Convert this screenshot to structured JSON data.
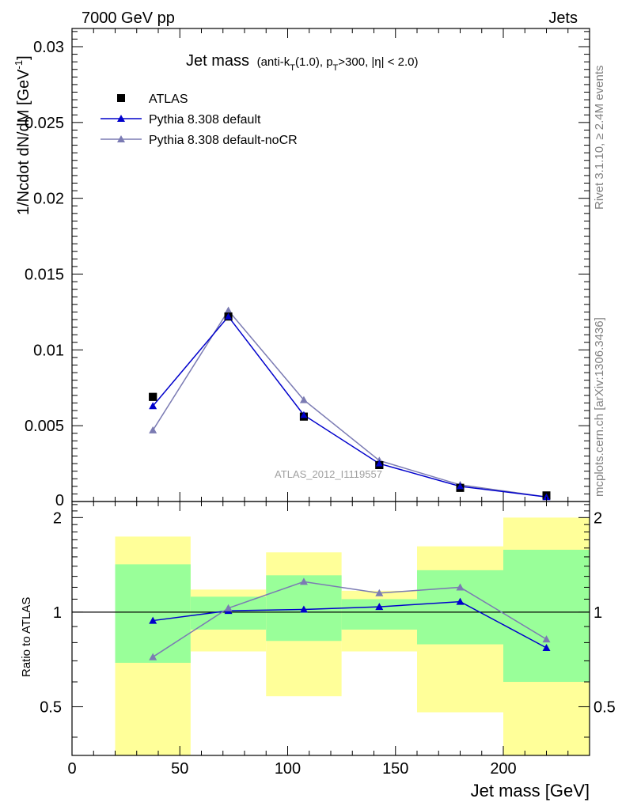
{
  "header": {
    "left": "7000 GeV pp",
    "right": "Jets"
  },
  "side_labels": {
    "top": "Rivet 3.1.10, ≥ 2.4M events",
    "bottom": "mcplots.cern.ch [arXiv:1306.3436]"
  },
  "watermark": "ATLAS_2012_I1119557",
  "chart_data": [
    {
      "type": "scatter",
      "title": "Jet mass",
      "subtitle_parts": [
        "(anti-k",
        "T",
        "(1.0), p",
        "T",
        ">300, |η| < 2.0)"
      ],
      "ylabel_parts": [
        "1/Ncdot dN/dM [GeV",
        "-1",
        "]"
      ],
      "xlim": [
        0,
        240
      ],
      "ylim": [
        0,
        0.0312
      ],
      "ytick_values": [
        0.005,
        0.01,
        0.015,
        0.02,
        0.025,
        0.03
      ],
      "ytick_labels": [
        "0.005",
        "0.01",
        "0.015",
        "0.02",
        "0.025",
        "0.03"
      ],
      "ytick_zero_label": "0",
      "legend_position": "top-left",
      "series": [
        {
          "name": "ATLAS",
          "color": "#000000",
          "marker": "square",
          "x": [
            37.5,
            72.5,
            107.5,
            142.5,
            180,
            220
          ],
          "y": [
            0.0069,
            0.0122,
            0.0056,
            0.0024,
            0.0009,
            0.0004
          ]
        },
        {
          "name": "Pythia 8.308 default",
          "color": "#0000cc",
          "marker": "triangle",
          "x": [
            37.5,
            72.5,
            107.5,
            142.5,
            180,
            220
          ],
          "y": [
            0.0063,
            0.0122,
            0.0057,
            0.0025,
            0.001,
            0.0003
          ]
        },
        {
          "name": "Pythia 8.308 default-noCR",
          "color": "#7b7bb3",
          "marker": "triangle",
          "x": [
            37.5,
            72.5,
            107.5,
            142.5,
            180,
            220
          ],
          "y": [
            0.0047,
            0.0126,
            0.0067,
            0.0027,
            0.0011,
            0.0003
          ]
        }
      ]
    },
    {
      "type": "scatter",
      "ylabel": "Ratio to ATLAS",
      "xlabel": "Jet mass [GeV]",
      "xlim": [
        0,
        240
      ],
      "ylim": [
        0.35,
        2.25
      ],
      "xtick_values": [
        0,
        50,
        100,
        150,
        200
      ],
      "xtick_labels": [
        "0",
        "50",
        "100",
        "150",
        "200"
      ],
      "ytick_values": [
        0.5,
        1,
        2
      ],
      "ytick_labels": [
        "0.5",
        "1",
        "2"
      ],
      "reference_line": 1,
      "bands": [
        {
          "x0": 20,
          "x1": 55,
          "green": [
            0.69,
            1.42
          ],
          "yellow": [
            0.35,
            1.74
          ]
        },
        {
          "x0": 55,
          "x1": 90,
          "green": [
            0.88,
            1.12
          ],
          "yellow": [
            0.75,
            1.18
          ]
        },
        {
          "x0": 90,
          "x1": 125,
          "green": [
            0.81,
            1.31
          ],
          "yellow": [
            0.54,
            1.55
          ]
        },
        {
          "x0": 125,
          "x1": 160,
          "green": [
            0.88,
            1.1
          ],
          "yellow": [
            0.75,
            1.17
          ]
        },
        {
          "x0": 160,
          "x1": 200,
          "green": [
            0.79,
            1.36
          ],
          "yellow": [
            0.48,
            1.62
          ]
        },
        {
          "x0": 200,
          "x1": 240,
          "green": [
            0.6,
            1.58
          ],
          "yellow": [
            0.35,
            2.0
          ]
        }
      ],
      "series": [
        {
          "name": "Pythia 8.308 default",
          "color": "#0000cc",
          "marker": "triangle",
          "x": [
            37.5,
            72.5,
            107.5,
            142.5,
            180,
            220
          ],
          "y": [
            0.94,
            1.01,
            1.02,
            1.04,
            1.08,
            0.77
          ]
        },
        {
          "name": "Pythia 8.308 default-noCR",
          "color": "#7b7bb3",
          "marker": "triangle",
          "x": [
            37.5,
            72.5,
            107.5,
            142.5,
            180,
            220
          ],
          "y": [
            0.72,
            1.03,
            1.25,
            1.15,
            1.2,
            0.82
          ]
        }
      ]
    }
  ]
}
